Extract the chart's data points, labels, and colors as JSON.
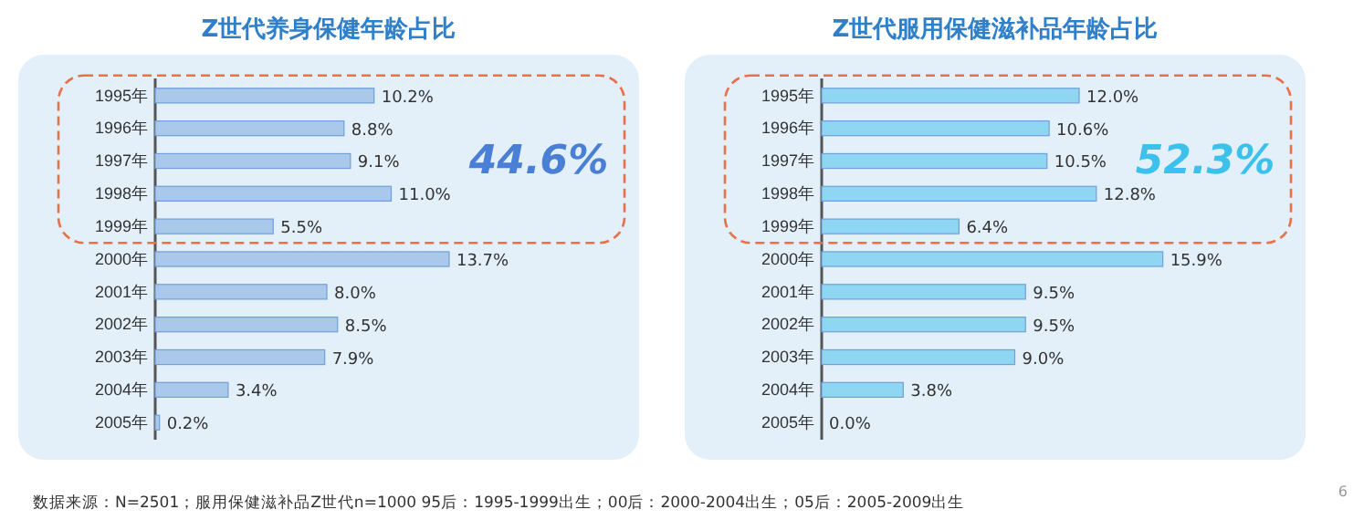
{
  "chart_data": [
    {
      "type": "bar",
      "orientation": "horizontal",
      "title": "Z世代养身保健年龄占比",
      "categories": [
        "1995年",
        "1996年",
        "1997年",
        "1998年",
        "1999年",
        "2000年",
        "2001年",
        "2002年",
        "2003年",
        "2004年",
        "2005年"
      ],
      "values": [
        10.2,
        8.8,
        9.1,
        11.0,
        5.5,
        13.7,
        8.0,
        8.5,
        7.9,
        3.4,
        0.2
      ],
      "value_labels": [
        "10.2%",
        "8.8%",
        "9.1%",
        "11.0%",
        "5.5%",
        "13.7%",
        "8.0%",
        "8.5%",
        "7.9%",
        "3.4%",
        "0.2%"
      ],
      "color": "#a9c8ea",
      "tick_labels": "y",
      "annotations": [
        "44.6%"
      ]
    },
    {
      "type": "bar",
      "orientation": "horizontal",
      "title": "Z世代服用保健滋补品年龄占比",
      "categories": [
        "1995年",
        "1996年",
        "1997年",
        "1998年",
        "1999年",
        "2000年",
        "2001年",
        "2002年",
        "2003年",
        "2004年",
        "2005年"
      ],
      "values": [
        12.0,
        10.6,
        10.5,
        12.8,
        6.4,
        15.9,
        9.5,
        9.5,
        9.0,
        3.8,
        0.0
      ],
      "value_labels": [
        "12.0%",
        "10.6%",
        "10.5%",
        "12.8%",
        "6.4%",
        "15.9%",
        "9.5%",
        "9.5%",
        "9.0%",
        "3.8%",
        "0.0%"
      ],
      "color": "#8fd6f2",
      "tick_labels": "y",
      "annotations": [
        "52.3%",
        "数据来源：N=2501；服用保健滋补品Z世代n=1000  95后：1995-1999出生；00后：2000-2004出生；05后：2005-2009出生",
        "6"
      ]
    }
  ]
}
